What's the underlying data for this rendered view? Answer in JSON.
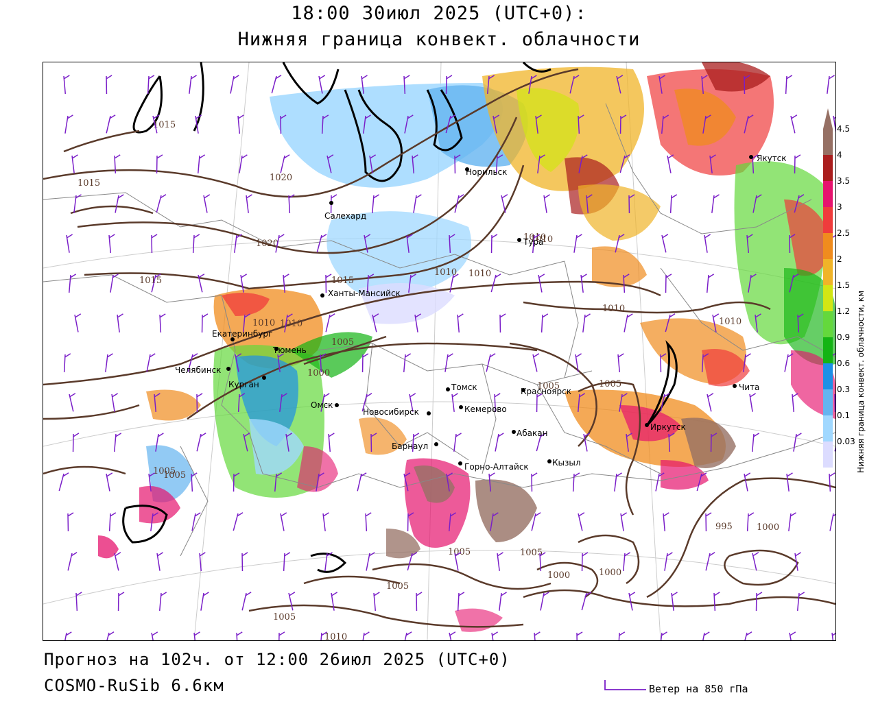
{
  "header": {
    "line1": "18:00 30июл 2025 (UTC+0):",
    "line2": "Нижняя граница конвект. облачности"
  },
  "footer": {
    "forecast": "Прогноз на 102ч. от 12:00 26июл 2025 (UTC+0)",
    "model": "COSMO-RuSib 6.6км",
    "wind_legend": "Ветер на 850 гПа"
  },
  "legend": {
    "title": "Нижняя граница конвект. облачности, км",
    "levels": [
      {
        "label": "0.03",
        "color": "#dcdcff"
      },
      {
        "label": "0.1",
        "color": "#a0d8ff"
      },
      {
        "label": "0.3",
        "color": "#64b4f0"
      },
      {
        "label": "0.6",
        "color": "#1e90e6"
      },
      {
        "label": "0.9",
        "color": "#14b414"
      },
      {
        "label": "1.2",
        "color": "#64d83c"
      },
      {
        "label": "1.5",
        "color": "#d2e614"
      },
      {
        "label": "2",
        "color": "#f0b428"
      },
      {
        "label": "2.5",
        "color": "#f08c1e"
      },
      {
        "label": "3",
        "color": "#f03c3c"
      },
      {
        "label": "3.5",
        "color": "#e6146e"
      },
      {
        "label": "4",
        "color": "#aa1e1e"
      },
      {
        "label": "4.5",
        "color": "#967064"
      }
    ]
  },
  "cities": [
    {
      "name": "Якутск"
    },
    {
      "name": "Норильск"
    },
    {
      "name": "Салехард"
    },
    {
      "name": "Тура"
    },
    {
      "name": "Ханты-Мансийск"
    },
    {
      "name": "Екатеринбург"
    },
    {
      "name": "Тюмень"
    },
    {
      "name": "Челябинск"
    },
    {
      "name": "Курган"
    },
    {
      "name": "Омск"
    },
    {
      "name": "Новосибирск"
    },
    {
      "name": "Томск"
    },
    {
      "name": "Кемерово"
    },
    {
      "name": "Красноярск"
    },
    {
      "name": "Абакан"
    },
    {
      "name": "Барнаул"
    },
    {
      "name": "Горно-Алтайск"
    },
    {
      "name": "Кызыл"
    },
    {
      "name": "Иркутск"
    },
    {
      "name": "Чита"
    }
  ],
  "isobar_labels": [
    "1015",
    "1015",
    "1020",
    "1020",
    "1015",
    "1015",
    "1010",
    "1010",
    "1010",
    "1005",
    "1000",
    "1010",
    "1010",
    "1010",
    "1005",
    "1005",
    "1005",
    "1005",
    "1000",
    "995",
    "1000",
    "1000",
    "1005",
    "1005",
    "1005",
    "1010",
    "1005",
    "1010",
    "1010"
  ],
  "colors": {
    "isobar": "#5a3a2a",
    "wind_barb": "#7a1ec8",
    "border": "#888888",
    "coast": "#000000"
  }
}
